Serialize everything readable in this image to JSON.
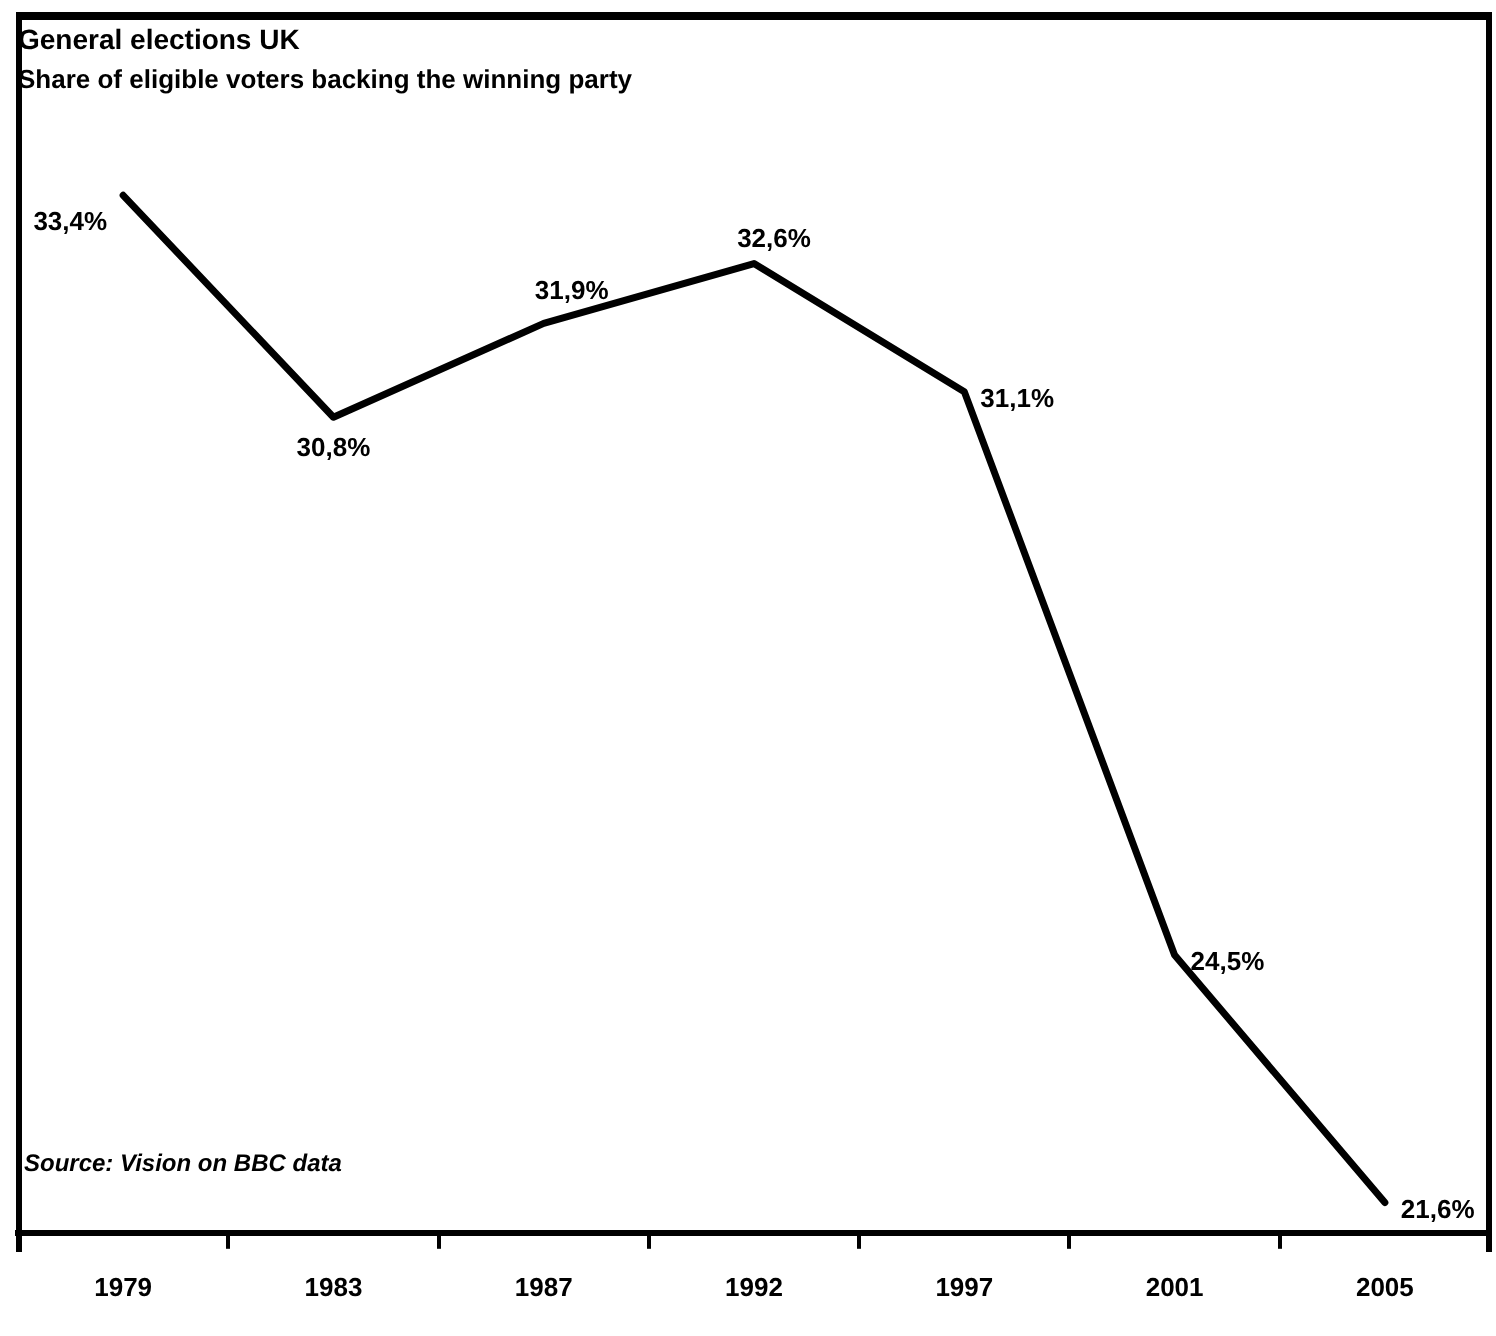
{
  "chart_data": {
    "type": "line",
    "title": "General elections UK",
    "subtitle": "Share of eligible voters backing the winning party",
    "categories": [
      "1979",
      "1983",
      "1987",
      "1992",
      "1997",
      "2001",
      "2005"
    ],
    "series": [
      {
        "color": "#000000",
        "values": [
          33.4,
          30.8,
          31.9,
          32.6,
          31.1,
          24.5,
          21.6
        ],
        "value_labels": [
          "33,4%",
          "30,8%",
          "31,9%",
          "32,6%",
          "31,1%",
          "24,5%",
          "21,6%"
        ]
      }
    ],
    "annotations": [
      "Source: Vision on BBC data"
    ],
    "tick_labels": "x",
    "grid": false,
    "legend": false,
    "marker": "none",
    "line_style": "solid"
  }
}
